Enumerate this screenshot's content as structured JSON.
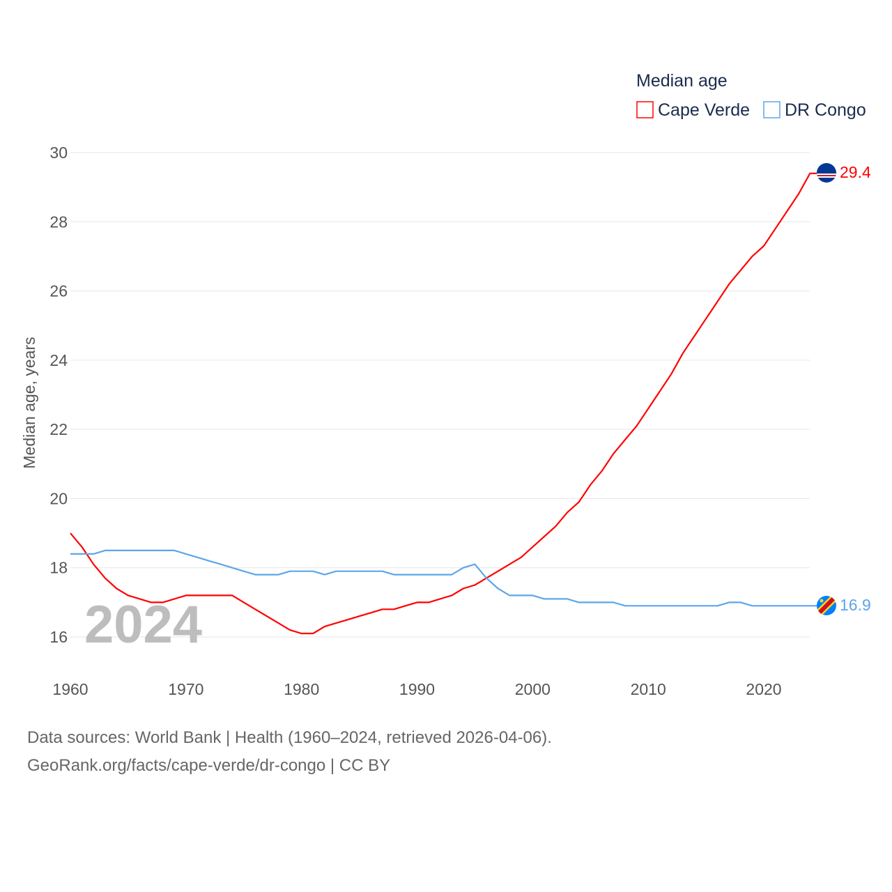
{
  "chart_data": {
    "type": "line",
    "title": "Median age",
    "ylabel": "Median age, years",
    "xlabel": "",
    "ylim": [
      15,
      30
    ],
    "xlim": [
      1960,
      2024
    ],
    "yticks": [
      16,
      18,
      20,
      22,
      24,
      26,
      28,
      30
    ],
    "xticks": [
      1960,
      1970,
      1980,
      1990,
      2000,
      2010,
      2020
    ],
    "grid": true,
    "legend_position": "top-right",
    "year_label": "2024",
    "x": [
      1960,
      1961,
      1962,
      1963,
      1964,
      1965,
      1966,
      1967,
      1968,
      1969,
      1970,
      1971,
      1972,
      1973,
      1974,
      1975,
      1976,
      1977,
      1978,
      1979,
      1980,
      1981,
      1982,
      1983,
      1984,
      1985,
      1986,
      1987,
      1988,
      1989,
      1990,
      1991,
      1992,
      1993,
      1994,
      1995,
      1996,
      1997,
      1998,
      1999,
      2000,
      2001,
      2002,
      2003,
      2004,
      2005,
      2006,
      2007,
      2008,
      2009,
      2010,
      2011,
      2012,
      2013,
      2014,
      2015,
      2016,
      2017,
      2018,
      2019,
      2020,
      2021,
      2022,
      2023,
      2024
    ],
    "series": [
      {
        "name": "Cape Verde",
        "color": "#ff0000",
        "end_label": "29.4",
        "values": [
          19.0,
          18.6,
          18.1,
          17.7,
          17.4,
          17.2,
          17.1,
          17.0,
          17.0,
          17.1,
          17.2,
          17.2,
          17.2,
          17.2,
          17.2,
          17.0,
          16.8,
          16.6,
          16.4,
          16.2,
          16.1,
          16.1,
          16.3,
          16.4,
          16.5,
          16.6,
          16.7,
          16.8,
          16.8,
          16.9,
          17.0,
          17.0,
          17.1,
          17.2,
          17.4,
          17.5,
          17.7,
          17.9,
          18.1,
          18.3,
          18.6,
          18.9,
          19.2,
          19.6,
          19.9,
          20.4,
          20.8,
          21.3,
          21.7,
          22.1,
          22.6,
          23.1,
          23.6,
          24.2,
          24.7,
          25.2,
          25.7,
          26.2,
          26.6,
          27.0,
          27.3,
          27.8,
          28.3,
          28.8,
          29.4
        ]
      },
      {
        "name": "DR Congo",
        "color": "#5da5ea",
        "end_label": "16.9",
        "values": [
          18.4,
          18.4,
          18.4,
          18.5,
          18.5,
          18.5,
          18.5,
          18.5,
          18.5,
          18.5,
          18.4,
          18.3,
          18.2,
          18.1,
          18.0,
          17.9,
          17.8,
          17.8,
          17.8,
          17.9,
          17.9,
          17.9,
          17.8,
          17.9,
          17.9,
          17.9,
          17.9,
          17.9,
          17.8,
          17.8,
          17.8,
          17.8,
          17.8,
          17.8,
          18.0,
          18.1,
          17.7,
          17.4,
          17.2,
          17.2,
          17.2,
          17.1,
          17.1,
          17.1,
          17.0,
          17.0,
          17.0,
          17.0,
          16.9,
          16.9,
          16.9,
          16.9,
          16.9,
          16.9,
          16.9,
          16.9,
          16.9,
          17.0,
          17.0,
          16.9,
          16.9,
          16.9,
          16.9,
          16.9,
          16.9
        ]
      }
    ]
  },
  "footer": {
    "sources": "Data sources: World Bank | Health (1960–2024, retrieved 2026-04-06).",
    "credit": "GeoRank.org/facts/cape-verde/dr-congo | CC BY"
  }
}
